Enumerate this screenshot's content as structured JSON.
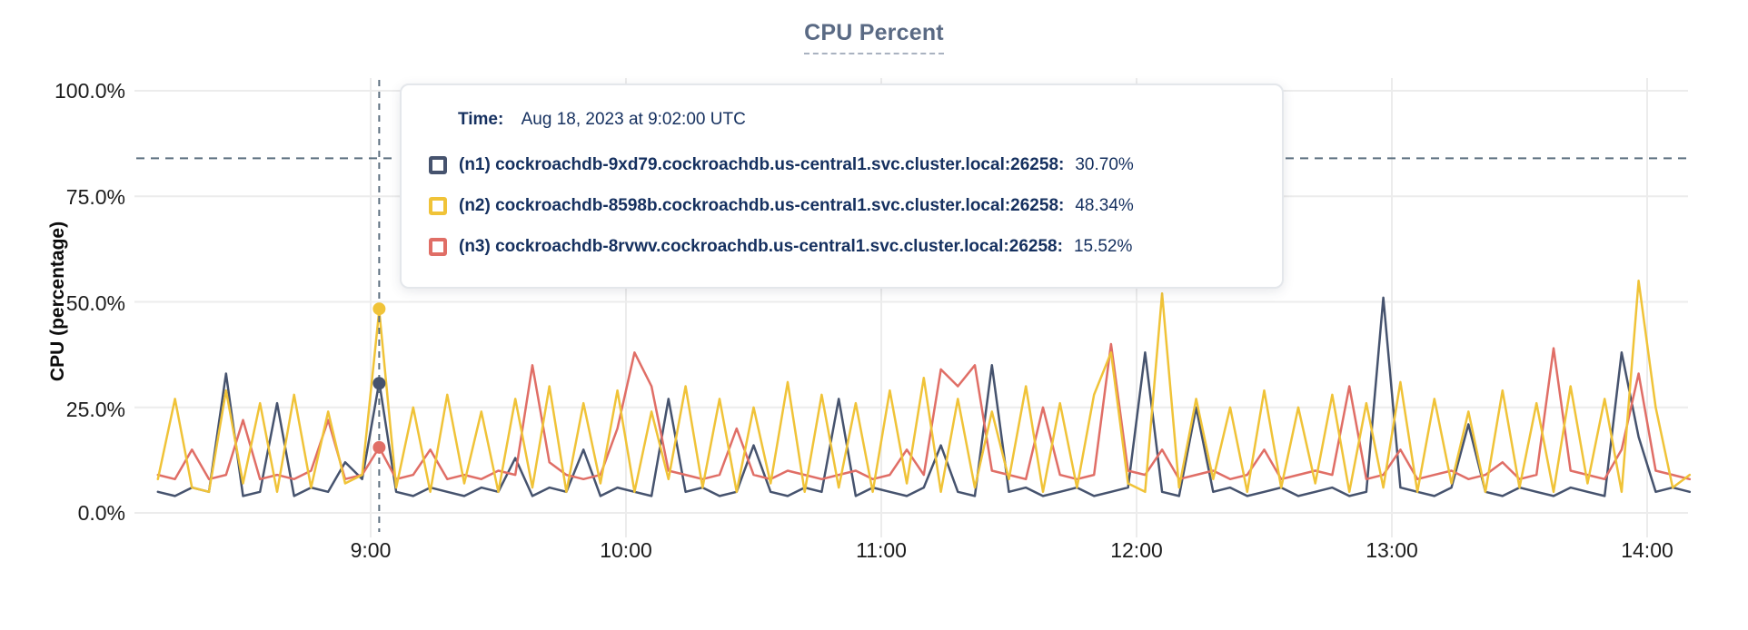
{
  "title": "CPU Percent",
  "tooltip": {
    "time_label": "Time:",
    "time_value": "Aug 18, 2023 at 9:02:00 UTC",
    "rows": [
      {
        "label": "(n1) cockroachdb-9xd79.cockroachdb.us-central1.svc.cluster.local:26258:",
        "value": "30.70%",
        "color": "#46536e"
      },
      {
        "label": "(n2) cockroachdb-8598b.cockroachdb.us-central1.svc.cluster.local:26258:",
        "value": "48.34%",
        "color": "#f0c338"
      },
      {
        "label": "(n3) cockroachdb-8rvwv.cockroachdb.us-central1.svc.cluster.local:26258:",
        "value": "15.52%",
        "color": "#e06e66"
      }
    ]
  },
  "colors": {
    "grid": "#ececec",
    "crosshair": "#5d7080",
    "title": "#5a6a84",
    "tooltip_text": "#15305f"
  },
  "chart_data": {
    "type": "line",
    "title": "CPU Percent",
    "ylabel": "CPU (percentage)",
    "ylim": [
      0,
      100
    ],
    "grid": true,
    "yticks": [
      {
        "label": "100.0%",
        "value": 100
      },
      {
        "label": "75.0%",
        "value": 75
      },
      {
        "label": "50.0%",
        "value": 50
      },
      {
        "label": "25.0%",
        "value": 25
      },
      {
        "label": "0.0%",
        "value": 0
      }
    ],
    "xticks": [
      {
        "label": "9:00",
        "minutes": 540
      },
      {
        "label": "10:00",
        "minutes": 600
      },
      {
        "label": "11:00",
        "minutes": 660
      },
      {
        "label": "12:00",
        "minutes": 720
      },
      {
        "label": "13:00",
        "minutes": 780
      },
      {
        "label": "14:00",
        "minutes": 840
      }
    ],
    "x_start_label": "8:10",
    "x_end_label": "14:10",
    "x_start_minutes": 490,
    "x_step_minutes": 4,
    "threshold_line_percent": 84,
    "hover": {
      "x_minutes": 542,
      "time": "Aug 18, 2023 at 9:02:00 UTC"
    },
    "series": [
      {
        "id": "n1",
        "name": "(n1) cockroachdb-9xd79.cockroachdb.us-central1.svc.cluster.local:26258",
        "color": "#46536e",
        "hover_value": 30.7,
        "values": [
          5,
          4,
          6,
          5,
          33,
          4,
          5,
          26,
          4,
          6,
          5,
          12,
          8,
          31,
          5,
          4,
          6,
          5,
          4,
          6,
          5,
          13,
          4,
          6,
          5,
          15,
          4,
          6,
          5,
          4,
          27,
          5,
          6,
          4,
          5,
          16,
          5,
          4,
          6,
          5,
          27,
          4,
          6,
          5,
          4,
          6,
          16,
          5,
          4,
          35,
          5,
          6,
          4,
          5,
          6,
          4,
          5,
          6,
          38,
          5,
          4,
          25,
          5,
          6,
          4,
          5,
          6,
          4,
          5,
          6,
          4,
          5,
          51,
          6,
          5,
          4,
          6,
          21,
          5,
          4,
          6,
          5,
          4,
          6,
          5,
          4,
          38,
          18,
          5,
          6,
          5
        ]
      },
      {
        "id": "n2",
        "name": "(n2) cockroachdb-8598b.cockroachdb.us-central1.svc.cluster.local:26258",
        "color": "#f0c338",
        "hover_value": 48.34,
        "values": [
          8,
          27,
          6,
          5,
          29,
          7,
          26,
          5,
          28,
          6,
          24,
          7,
          9,
          48,
          6,
          25,
          5,
          28,
          7,
          24,
          5,
          27,
          6,
          30,
          5,
          26,
          7,
          29,
          5,
          24,
          8,
          30,
          6,
          27,
          5,
          25,
          7,
          31,
          5,
          28,
          6,
          26,
          5,
          29,
          7,
          32,
          5,
          27,
          6,
          24,
          8,
          30,
          5,
          26,
          6,
          28,
          38,
          7,
          5,
          52,
          6,
          27,
          8,
          25,
          5,
          29,
          6,
          25,
          7,
          28,
          5,
          26,
          6,
          31,
          5,
          27,
          7,
          24,
          5,
          29,
          6,
          26,
          5,
          30,
          7,
          27,
          5,
          55,
          25,
          6,
          9
        ]
      },
      {
        "id": "n3",
        "name": "(n3) cockroachdb-8rvwv.cockroachdb.us-central1.svc.cluster.local:26258",
        "color": "#e06e66",
        "hover_value": 15.52,
        "values": [
          9,
          8,
          15,
          8,
          9,
          22,
          8,
          9,
          8,
          10,
          22,
          8,
          9,
          15.5,
          8,
          9,
          15,
          8,
          9,
          8,
          10,
          9,
          35,
          12,
          9,
          8,
          9,
          20,
          38,
          30,
          10,
          9,
          8,
          9,
          20,
          9,
          8,
          10,
          9,
          8,
          9,
          10,
          8,
          9,
          15,
          9,
          34,
          30,
          35,
          10,
          9,
          8,
          25,
          9,
          8,
          9,
          40,
          10,
          9,
          15,
          8,
          9,
          10,
          8,
          9,
          15,
          8,
          9,
          10,
          9,
          30,
          8,
          9,
          15,
          8,
          9,
          10,
          8,
          9,
          12,
          8,
          9,
          39,
          10,
          9,
          8,
          15,
          33,
          10,
          9,
          8
        ]
      }
    ]
  }
}
